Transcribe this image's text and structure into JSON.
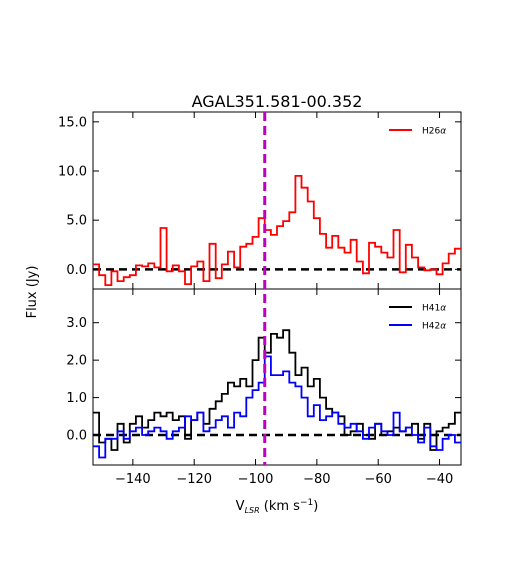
{
  "chart_data": {
    "title": "AGAL351.581-00.352",
    "xlabel": {
      "main": "V",
      "sub": "LSR",
      "unit_pre": " (km s",
      "sup": "−1",
      "unit_post": ")"
    },
    "ylabel": "Flux (Jy)",
    "xlim": [
      -153,
      -33
    ],
    "xticks": [
      -140,
      -120,
      -100,
      -80,
      -60,
      -40
    ],
    "xtick_labels": [
      "−140",
      "−120",
      "−100",
      "−80",
      "−60",
      "−40"
    ],
    "vline": {
      "x": -97,
      "color": "#bf00bf",
      "style": "dashed"
    },
    "panels": [
      {
        "type": "line",
        "ylim": [
          -2.0,
          16.0
        ],
        "yticks": [
          0.0,
          5.0,
          10.0,
          15.0
        ],
        "ytick_labels": [
          "0.0",
          "5.0",
          "10.0",
          "15.0"
        ],
        "zero_line": 0.0,
        "legend_position": "top-right",
        "series": [
          {
            "name": "H26",
            "name_sub": "α",
            "color": "#ff0000",
            "step": 2,
            "x": [
              -152,
              -150,
              -148,
              -146,
              -144,
              -142,
              -140,
              -138,
              -136,
              -134,
              -132,
              -130,
              -128,
              -126,
              -124,
              -122,
              -120,
              -118,
              -116,
              -114,
              -112,
              -110,
              -108,
              -106,
              -104,
              -102,
              -100,
              -98,
              -96,
              -94,
              -92,
              -90,
              -88,
              -86,
              -84,
              -82,
              -80,
              -78,
              -76,
              -74,
              -72,
              -70,
              -68,
              -66,
              -64,
              -62,
              -60,
              -58,
              -56,
              -54,
              -52,
              -50,
              -48,
              -46,
              -44,
              -42,
              -40,
              -38,
              -36,
              -34
            ],
            "values": [
              0.5,
              -0.6,
              -1.6,
              -0.2,
              -1.2,
              -0.8,
              -0.6,
              0.4,
              0.3,
              0.6,
              0.2,
              4.2,
              -0.2,
              0.4,
              -0.2,
              -1.5,
              0.3,
              0.8,
              -1.2,
              2.6,
              -0.9,
              0.5,
              1.8,
              0.2,
              2.3,
              2.6,
              3.3,
              5.2,
              4.0,
              3.5,
              4.4,
              4.9,
              5.8,
              9.5,
              8.3,
              6.9,
              5.2,
              3.6,
              2.2,
              3.4,
              2.2,
              1.7,
              3.0,
              0.8,
              -0.4,
              2.7,
              2.3,
              1.7,
              1.2,
              4.0,
              -0.3,
              2.5,
              1.2,
              0.2,
              -0.1,
              0.0,
              -0.5,
              0.6,
              1.6,
              2.1
            ]
          }
        ]
      },
      {
        "type": "line",
        "ylim": [
          -0.8,
          3.9
        ],
        "yticks": [
          0.0,
          1.0,
          2.0,
          3.0
        ],
        "ytick_labels": [
          "0.0",
          "1.0",
          "2.0",
          "3.0"
        ],
        "zero_line": 0.0,
        "legend_position": "top-right",
        "series": [
          {
            "name": "H41",
            "name_sub": "α",
            "color": "#000000",
            "step": 2,
            "x": [
              -152,
              -150,
              -148,
              -146,
              -144,
              -142,
              -140,
              -138,
              -136,
              -134,
              -132,
              -130,
              -128,
              -126,
              -124,
              -122,
              -120,
              -118,
              -116,
              -114,
              -112,
              -110,
              -108,
              -106,
              -104,
              -102,
              -100,
              -98,
              -96,
              -94,
              -92,
              -90,
              -88,
              -86,
              -84,
              -82,
              -80,
              -78,
              -76,
              -74,
              -72,
              -70,
              -68,
              -66,
              -64,
              -62,
              -60,
              -58,
              -56,
              -54,
              -52,
              -50,
              -48,
              -46,
              -44,
              -42,
              -40,
              -38,
              -36,
              -34
            ],
            "values": [
              0.6,
              -0.2,
              -0.1,
              -0.4,
              0.3,
              -0.2,
              0.3,
              0.5,
              0.2,
              0.4,
              0.6,
              0.5,
              0.6,
              0.4,
              0.5,
              -0.1,
              0.4,
              0.6,
              0.3,
              0.7,
              0.9,
              1.1,
              1.4,
              1.3,
              1.5,
              1.3,
              2.0,
              2.6,
              2.2,
              2.7,
              2.6,
              2.8,
              2.2,
              1.6,
              1.8,
              1.3,
              1.5,
              1.0,
              0.7,
              0.6,
              0.5,
              0.0,
              0.1,
              0.3,
              0.0,
              -0.1,
              0.3,
              0.0,
              0.1,
              0.2,
              0.1,
              0.2,
              0.3,
              -0.1,
              0.3,
              -0.4,
              0.1,
              0.2,
              0.3,
              0.6
            ]
          },
          {
            "name": "H42",
            "name_sub": "α",
            "color": "#0000ff",
            "step": 2,
            "x": [
              -152,
              -150,
              -148,
              -146,
              -144,
              -142,
              -140,
              -138,
              -136,
              -134,
              -132,
              -130,
              -128,
              -126,
              -124,
              -122,
              -120,
              -118,
              -116,
              -114,
              -112,
              -110,
              -108,
              -106,
              -104,
              -102,
              -100,
              -98,
              -96,
              -94,
              -92,
              -90,
              -88,
              -86,
              -84,
              -82,
              -80,
              -78,
              -76,
              -74,
              -72,
              -70,
              -68,
              -66,
              -64,
              -62,
              -60,
              -58,
              -56,
              -54,
              -52,
              -50,
              -48,
              -46,
              -44,
              -42,
              -40,
              -38,
              -36,
              -34
            ],
            "values": [
              -0.3,
              -0.6,
              -0.1,
              -0.1,
              0.1,
              -0.1,
              0.1,
              0.2,
              0.0,
              0.1,
              0.2,
              0.1,
              -0.1,
              0.1,
              0.2,
              0.5,
              0.4,
              0.6,
              0.1,
              0.2,
              0.4,
              0.5,
              0.2,
              0.6,
              0.5,
              1.0,
              1.2,
              1.4,
              2.1,
              1.6,
              1.6,
              1.7,
              1.4,
              1.3,
              1.0,
              0.5,
              0.8,
              0.4,
              0.5,
              0.6,
              0.3,
              0.2,
              0.3,
              0.1,
              -0.1,
              0.2,
              0.3,
              0.1,
              0.0,
              0.6,
              0.1,
              0.2,
              0.0,
              -0.2,
              0.2,
              -0.3,
              -0.4,
              -0.1,
              0.0,
              -0.2
            ]
          }
        ]
      }
    ]
  }
}
